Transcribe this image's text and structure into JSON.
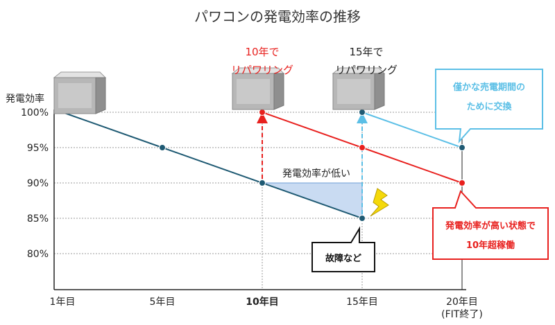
{
  "colors": {
    "base": "#1f5a73",
    "red": "#e8201e",
    "cyan": "#5bbfe6",
    "grid": "#9a9a9a",
    "shade": "#c9dbf2",
    "bolt": "#f5d90a"
  },
  "chart_data": {
    "type": "line",
    "title": "パワコンの発電効率の推移",
    "ylabel": "発電効率",
    "ylim": [
      78,
      100
    ],
    "yticks": [
      {
        "value": 100,
        "label": "100%"
      },
      {
        "value": 95,
        "label": "95%"
      },
      {
        "value": 90,
        "label": "90%"
      },
      {
        "value": 85,
        "label": "85%"
      },
      {
        "value": 80,
        "label": "80%"
      }
    ],
    "xlim": [
      0,
      20
    ],
    "xticks": [
      {
        "value": 0,
        "label": "1年目",
        "sub": ""
      },
      {
        "value": 5,
        "label": "5年目",
        "sub": ""
      },
      {
        "value": 10,
        "label": "10年目",
        "sub": ""
      },
      {
        "value": 15,
        "label": "15年目",
        "sub": ""
      },
      {
        "value": 20,
        "label": "20年目",
        "sub": "(FIT終了)"
      }
    ],
    "series": [
      {
        "key": "original",
        "color": "#1f5a73",
        "points": [
          [
            0,
            100
          ],
          [
            5,
            95
          ],
          [
            10,
            90
          ],
          [
            15,
            85
          ]
        ],
        "markers": [
          5,
          10,
          15
        ]
      },
      {
        "key": "repower10",
        "color": "#e8201e",
        "points": [
          [
            10,
            100
          ],
          [
            15,
            95
          ],
          [
            20,
            90
          ]
        ],
        "markers": [
          10,
          15,
          20
        ]
      },
      {
        "key": "repower15",
        "color": "#5bbfe6",
        "points": [
          [
            15,
            100
          ],
          [
            20,
            95
          ]
        ],
        "markers": [
          15,
          20
        ]
      }
    ],
    "annotations": {
      "repower10": {
        "line1": "10年で",
        "line2": "リパワリング"
      },
      "repower15": {
        "line1": "15年で",
        "line2": "リパワリング"
      },
      "low_efficiency": "発電効率が低い",
      "callout_cyan": {
        "line1": "僅かな売電期間の",
        "line2": "ために交換"
      },
      "callout_red": {
        "line1": "発電効率が高い状態で",
        "line2": "10年超稼働"
      },
      "callout_black": "故障など"
    }
  }
}
